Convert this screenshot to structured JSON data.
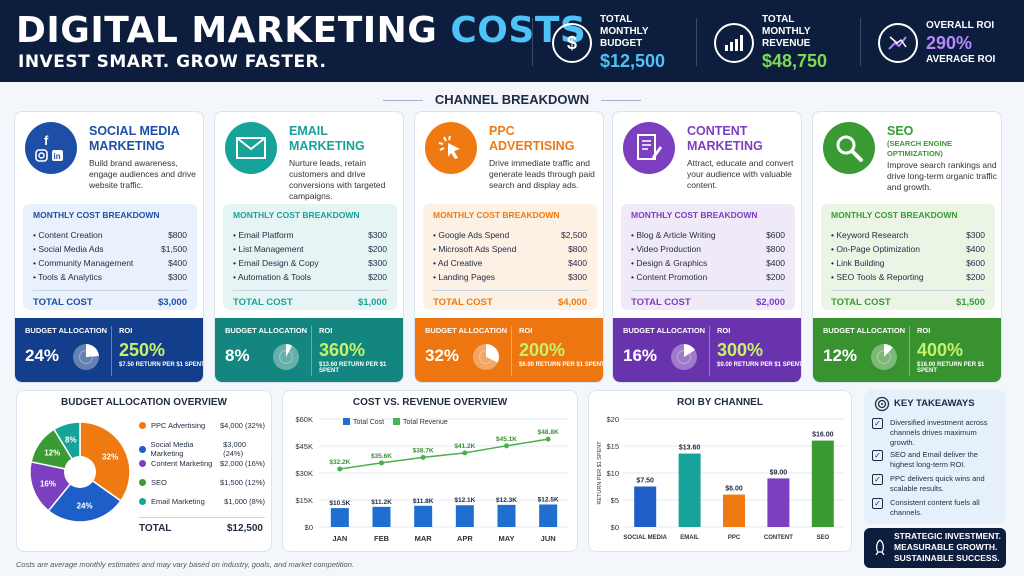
{
  "header": {
    "title_main": "DIGITAL MARKETING",
    "title_accent": "COSTS",
    "subtitle": "INVEST SMART. GROW FASTER.",
    "kpis": [
      {
        "label": "TOTAL MONTHLY BUDGET",
        "value": "$12,500",
        "icon": "dollar-icon",
        "color": "#4fc3f7"
      },
      {
        "label": "TOTAL MONTHLY REVENUE",
        "value": "$48,750",
        "icon": "bar-growth-icon",
        "color": "#7ed957"
      },
      {
        "label_top": "OVERALL ROI",
        "value": "290%",
        "label_bottom": "AVERAGE ROI",
        "icon": "trend-arrows-icon",
        "color": "#b388ff"
      }
    ]
  },
  "section_title": "CHANNEL BREAKDOWN",
  "channels": [
    {
      "name": "SOCIAL MEDIA MARKETING",
      "desc": "Build brand awareness, engage audiences and drive website traffic.",
      "icon": "social-icons",
      "color": "#1e4fa8",
      "band": "#123e8c",
      "bd_bg": "#e8f1fc",
      "breakdown_title": "MONTHLY COST BREAKDOWN",
      "items": [
        [
          "• Content Creation",
          "$800"
        ],
        [
          "• Social Media Ads",
          "$1,500"
        ],
        [
          "• Community Management",
          "$400"
        ],
        [
          "• Tools & Analytics",
          "$300"
        ]
      ],
      "total_label": "TOTAL COST",
      "total": "$3,000",
      "alloc_label": "BUDGET ALLOCATION",
      "alloc": "24%",
      "alloc_frac": 0.24,
      "roi_label": "ROI",
      "roi": "250%",
      "roi_text": "$7.50 RETURN PER $1 SPENT"
    },
    {
      "name": "EMAIL MARKETING",
      "desc": "Nurture leads, retain customers and drive conversions with targeted campaigns.",
      "icon": "envelope-icon",
      "color": "#18a39a",
      "band": "#12867f",
      "bd_bg": "#e6f5f3",
      "breakdown_title": "MONTHLY COST BREAKDOWN",
      "items": [
        [
          "• Email Platform",
          "$300"
        ],
        [
          "• List Management",
          "$200"
        ],
        [
          "• Email Design & Copy",
          "$300"
        ],
        [
          "• Automation & Tools",
          "$200"
        ]
      ],
      "total_label": "TOTAL COST",
      "total": "$1,000",
      "alloc_label": "BUDGET ALLOCATION",
      "alloc": "8%",
      "alloc_frac": 0.08,
      "roi_label": "ROI",
      "roi": "360%",
      "roi_text": "$13.60 RETURN PER $1 SPENT"
    },
    {
      "name": "PPC ADVERTISING",
      "desc": "Drive immediate traffic and generate leads through paid search and display ads.",
      "icon": "cursor-click-icon",
      "color": "#f07a12",
      "band": "#ee7611",
      "bd_bg": "#fdf0e4",
      "breakdown_title": "MONTHLY COST BREAKDOWN",
      "items": [
        [
          "• Google Ads Spend",
          "$2,500"
        ],
        [
          "• Microsoft Ads Spend",
          "$800"
        ],
        [
          "• Ad Creative",
          "$400"
        ],
        [
          "• Landing Pages",
          "$300"
        ]
      ],
      "total_label": "TOTAL COST",
      "total": "$4,000",
      "alloc_label": "BUDGET ALLOCATION",
      "alloc": "32%",
      "alloc_frac": 0.32,
      "roi_label": "ROI",
      "roi": "200%",
      "roi_text": "$6.00 RETURN PER $1 SPENT"
    },
    {
      "name": "CONTENT MARKETING",
      "desc": "Attract, educate and convert your audience with valuable content.",
      "icon": "document-pen-icon",
      "color": "#7c3fbf",
      "band": "#6a33ae",
      "bd_bg": "#f0e9f8",
      "breakdown_title": "MONTHLY COST BREAKDOWN",
      "items": [
        [
          "• Blog & Article Writing",
          "$600"
        ],
        [
          "• Video Production",
          "$800"
        ],
        [
          "• Design & Graphics",
          "$400"
        ],
        [
          "• Content Promotion",
          "$200"
        ]
      ],
      "total_label": "TOTAL COST",
      "total": "$2,000",
      "alloc_label": "BUDGET ALLOCATION",
      "alloc": "16%",
      "alloc_frac": 0.16,
      "roi_label": "ROI",
      "roi": "300%",
      "roi_text": "$9.00 RETURN PER $1 SPENT"
    },
    {
      "name": "SEO",
      "name_sub": "(SEARCH ENGINE OPTIMIZATION)",
      "desc": "Improve search rankings and drive long-term organic traffic and growth.",
      "icon": "magnifier-icon",
      "color": "#3a9a34",
      "band": "#37922f",
      "bd_bg": "#eaf5e6",
      "breakdown_title": "MONTHLY COST BREAKDOWN",
      "items": [
        [
          "• Keyword Research",
          "$300"
        ],
        [
          "• On-Page Optimization",
          "$400"
        ],
        [
          "• Link Building",
          "$600"
        ],
        [
          "• SEO Tools & Reporting",
          "$200"
        ]
      ],
      "total_label": "TOTAL COST",
      "total": "$1,500",
      "alloc_label": "BUDGET ALLOCATION",
      "alloc": "12%",
      "alloc_frac": 0.12,
      "roi_label": "ROI",
      "roi": "400%",
      "roi_text": "$16.00 RETURN PER $1 SPENT"
    }
  ],
  "chart_data": [
    {
      "type": "pie",
      "title": "BUDGET ALLOCATION OVERVIEW",
      "slices": [
        {
          "label": "PPC Advertising",
          "value": 32,
          "amount": "$4,000 (32%)",
          "pct_label": "32%",
          "color": "#f07a12"
        },
        {
          "label": "Social Media Marketing",
          "value": 24,
          "amount": "$3,000 (24%)",
          "pct_label": "24%",
          "color": "#1e5fc7"
        },
        {
          "label": "Content Marketing",
          "value": 16,
          "amount": "$2,000 (16%)",
          "pct_label": "16%",
          "color": "#7c3fbf"
        },
        {
          "label": "SEO",
          "value": 12,
          "amount": "$1,500 (12%)",
          "pct_label": "12%",
          "color": "#3a9a34"
        },
        {
          "label": "Email Marketing",
          "value": 8,
          "amount": "$1,000 (8%)",
          "pct_label": "8%",
          "color": "#18a39a"
        }
      ],
      "total_label": "TOTAL",
      "total": "$12,500"
    },
    {
      "type": "bar",
      "title": "COST VS. REVENUE OVERVIEW",
      "categories": [
        "JAN",
        "FEB",
        "MAR",
        "APR",
        "MAY",
        "JUN"
      ],
      "series": [
        {
          "name": "Total Cost",
          "type": "bar",
          "color": "#1e6fd0",
          "values": [
            10.5,
            11.2,
            11.8,
            12.1,
            12.3,
            12.5
          ],
          "labels": [
            "$10.5K",
            "$11.2K",
            "$11.8K",
            "$12.1K",
            "$12.3K",
            "$12.5K"
          ]
        },
        {
          "name": "Total Revenue",
          "type": "line",
          "color": "#4caf50",
          "values": [
            32.2,
            35.6,
            38.7,
            41.2,
            45.1,
            48.8
          ],
          "labels": [
            "$32.2K",
            "$35.6K",
            "$38.7K",
            "$41.2K",
            "$45.1K",
            "$48.8K"
          ]
        }
      ],
      "yticks": [
        "$0",
        "$15K",
        "$30K",
        "$45K",
        "$60K"
      ],
      "ylim": [
        0,
        60
      ]
    },
    {
      "type": "bar",
      "title": "ROI BY CHANNEL",
      "categories": [
        "SOCIAL MEDIA",
        "EMAIL",
        "PPC",
        "CONTENT",
        "SEO"
      ],
      "values": [
        7.5,
        13.6,
        6.0,
        9.0,
        16.0
      ],
      "labels": [
        "$7.50",
        "$13.60",
        "$6.00",
        "$9.00",
        "$16.00"
      ],
      "colors": [
        "#1e5fc7",
        "#18a39a",
        "#f07a12",
        "#7c3fbf",
        "#3a9a34"
      ],
      "ylabel": "RETURN PER $1 SPENT",
      "yticks": [
        "$0",
        "$5",
        "$10",
        "$15",
        "$20"
      ],
      "ylim": [
        0,
        20
      ]
    }
  ],
  "takeaways": {
    "title": "KEY TAKEAWAYS",
    "items": [
      "Diversified investment across channels drives maximum growth.",
      "SEO and Email deliver the highest long-term ROI.",
      "PPC delivers quick wins and scalable results.",
      "Consistent content fuels all channels."
    ]
  },
  "banner": {
    "line1": "STRATEGIC INVESTMENT.",
    "line2": "MEASURABLE GROWTH.",
    "line3": "SUSTAINABLE SUCCESS."
  },
  "footnote": "Costs are average monthly estimates and may vary based on industry, goals, and market competition."
}
